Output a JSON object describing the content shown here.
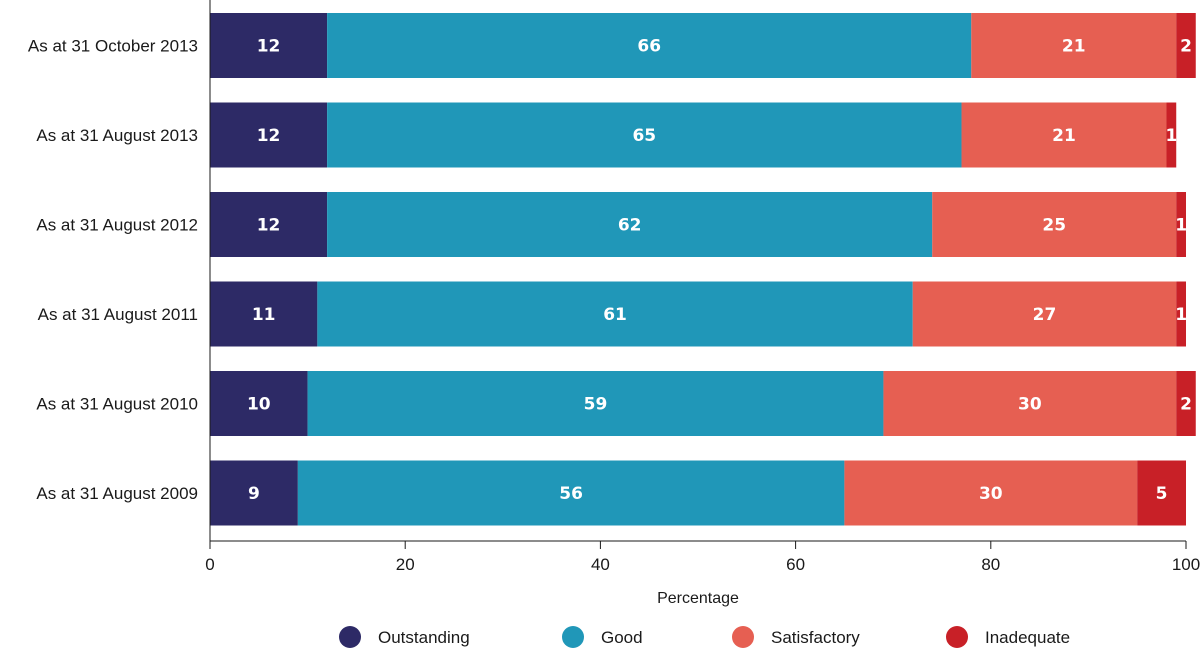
{
  "chart_data": {
    "type": "bar",
    "orientation": "horizontal",
    "stacked": true,
    "title": "",
    "xlabel": "Percentage",
    "ylabel": "",
    "xlim": [
      0,
      100
    ],
    "x_ticks": [
      0,
      20,
      40,
      60,
      80,
      100
    ],
    "categories": [
      "As at 31 October 2013",
      "As at 31 August 2013",
      "As at 31 August 2012",
      "As at 31 August 2011",
      "As at 31 August 2010",
      "As at 31 August 2009"
    ],
    "series": [
      {
        "name": "Outstanding",
        "color": "#2d2a66",
        "values": [
          12,
          12,
          12,
          11,
          10,
          9
        ]
      },
      {
        "name": "Good",
        "color": "#2097b8",
        "values": [
          66,
          65,
          62,
          61,
          59,
          56
        ]
      },
      {
        "name": "Satisfactory",
        "color": "#e65f52",
        "values": [
          21,
          21,
          25,
          27,
          30,
          30
        ]
      },
      {
        "name": "Inadequate",
        "color": "#c82027",
        "values": [
          2,
          1,
          1,
          1,
          2,
          5
        ]
      }
    ],
    "grid": false,
    "legend": "bottom",
    "data_labels": true
  }
}
